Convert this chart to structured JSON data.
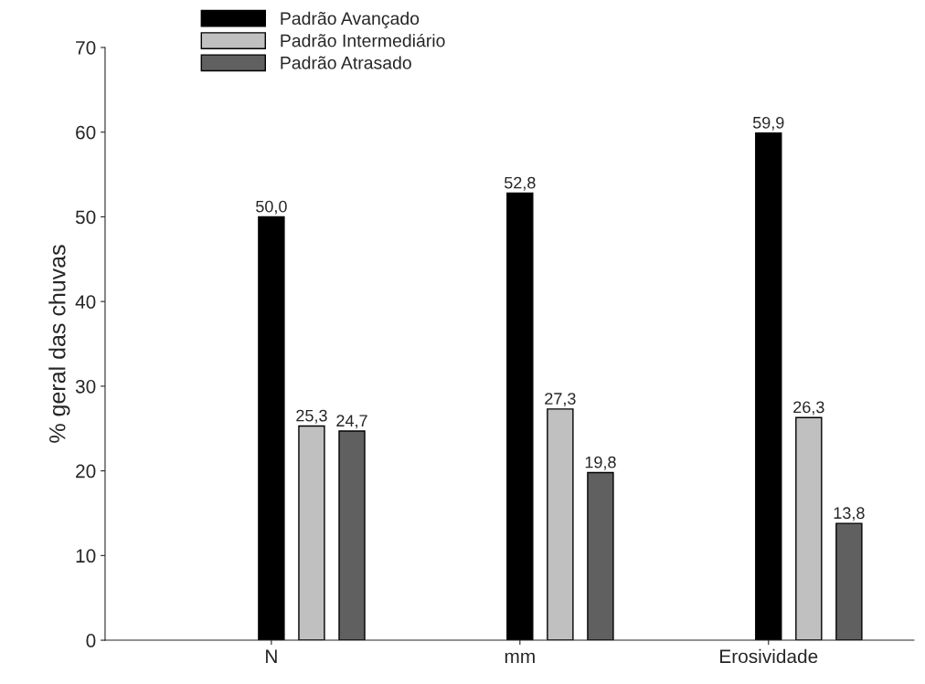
{
  "chart_data": {
    "type": "bar",
    "ylabel": "% geral das chuvas",
    "categories": [
      "N",
      "mm",
      "Erosividade"
    ],
    "series": [
      {
        "name": "Padrão Avançado",
        "color": "#000000",
        "values": [
          50.0,
          52.8,
          59.9
        ],
        "value_labels": [
          "50,0",
          "52,8",
          "59,9"
        ]
      },
      {
        "name": "Padrão Intermediário",
        "color": "#c0c0c0",
        "values": [
          25.3,
          27.3,
          26.3
        ],
        "value_labels": [
          "25,3",
          "27,3",
          "26,3"
        ]
      },
      {
        "name": "Padrão Atrasado",
        "color": "#606060",
        "values": [
          24.7,
          19.8,
          13.8
        ],
        "value_labels": [
          "24,7",
          "19,8",
          "13,8"
        ]
      }
    ],
    "ylim": [
      0,
      70
    ],
    "yticks": [
      0,
      10,
      20,
      30,
      40,
      50,
      60,
      70
    ],
    "legend": "top",
    "grid": false
  }
}
